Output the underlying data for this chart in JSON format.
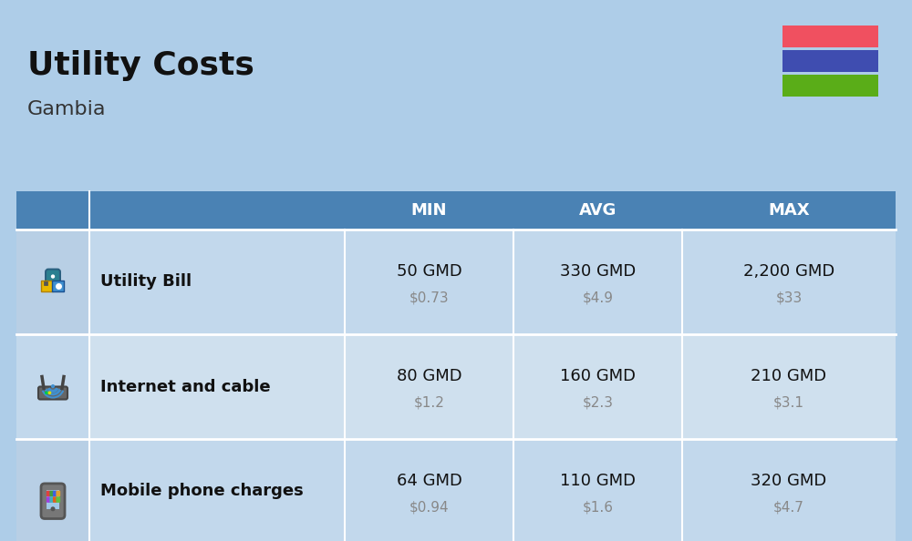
{
  "title": "Utility Costs",
  "subtitle": "Gambia",
  "background_color": "#aecde8",
  "header_bg_color": "#4a82b4",
  "header_text_color": "#ffffff",
  "row_color_odd": "#c2d8ec",
  "row_color_even": "#cfe0ee",
  "icon_col_color_odd": "#b8cfe5",
  "icon_col_color_even": "#c2d8ec",
  "col_headers": [
    "MIN",
    "AVG",
    "MAX"
  ],
  "rows": [
    {
      "label": "Utility Bill",
      "min_gmd": "50 GMD",
      "min_usd": "$0.73",
      "avg_gmd": "330 GMD",
      "avg_usd": "$4.9",
      "max_gmd": "2,200 GMD",
      "max_usd": "$33"
    },
    {
      "label": "Internet and cable",
      "min_gmd": "80 GMD",
      "min_usd": "$1.2",
      "avg_gmd": "160 GMD",
      "avg_usd": "$2.3",
      "max_gmd": "210 GMD",
      "max_usd": "$3.1"
    },
    {
      "label": "Mobile phone charges",
      "min_gmd": "64 GMD",
      "min_usd": "$0.94",
      "avg_gmd": "110 GMD",
      "avg_usd": "$1.6",
      "max_gmd": "320 GMD",
      "max_usd": "$4.7"
    }
  ],
  "flag_colors": [
    "#f05060",
    "#3f4db0",
    "#5aad18"
  ],
  "title_fontsize": 26,
  "subtitle_fontsize": 16,
  "header_fontsize": 13,
  "label_fontsize": 13,
  "value_fontsize": 13,
  "usd_fontsize": 11,
  "fig_width": 10.0,
  "fig_height": 5.94
}
